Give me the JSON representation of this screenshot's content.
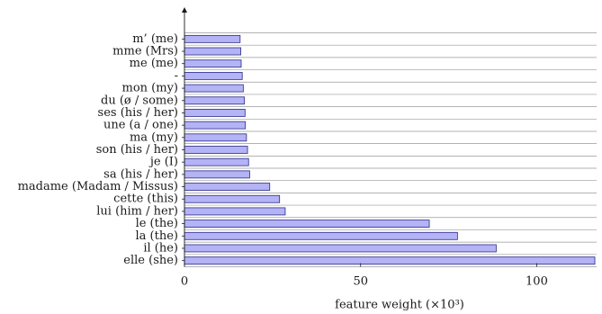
{
  "chart_data": {
    "type": "bar",
    "orientation": "horizontal",
    "categories": [
      "m’ (me)",
      "mme (Mrs)",
      "me (me)",
      "-",
      "mon (my)",
      "du (ø / some)",
      "ses (his / her)",
      "une (a / one)",
      "ma (my)",
      "son (his / her)",
      "je (I)",
      "sa (his / her)",
      "madame (Madam / Missus)",
      "cette (this)",
      "lui (him / her)",
      "le (the)",
      "la (the)",
      "il (he)",
      "elle (she)"
    ],
    "values": [
      15.8,
      16.0,
      16.1,
      16.4,
      16.7,
      17.0,
      17.2,
      17.3,
      17.6,
      17.9,
      18.2,
      18.5,
      24.2,
      27.0,
      28.6,
      69.5,
      77.5,
      88.5,
      116.5
    ],
    "title": "",
    "xlabel": "feature weight (×10³)",
    "ylabel": "",
    "xlim": [
      0,
      117
    ],
    "xticks": [
      0,
      50,
      100
    ],
    "grid": true,
    "colors": {
      "bar_fill": "#b3b3f5",
      "bar_stroke": "#2a2a8a"
    }
  }
}
